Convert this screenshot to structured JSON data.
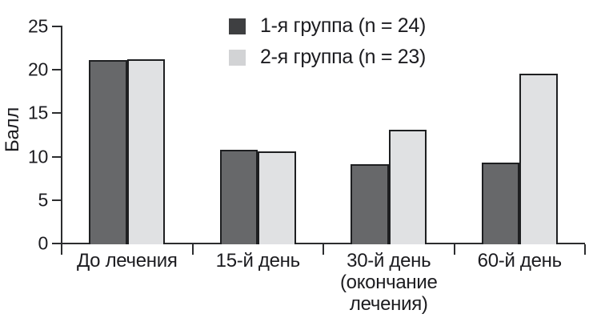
{
  "chart_data": {
    "type": "bar",
    "title": "",
    "ylabel": "Балл",
    "xlabel": "",
    "categories": [
      "До лечения",
      "15-й день",
      "30-й день\n(окончание\nлечения)",
      "60-й день"
    ],
    "series": [
      {
        "name": "1-я группа (n = 24)",
        "color": "#67686a",
        "legend_color": "#3e3f41",
        "values": [
          21.0,
          10.7,
          9.0,
          9.2
        ]
      },
      {
        "name": "2-я группа (n = 23)",
        "color": "#e0e1e3",
        "legend_color": "#d2d3d5",
        "values": [
          21.1,
          10.5,
          13.0,
          19.5
        ]
      }
    ],
    "ylim": [
      0,
      25
    ],
    "yticks": [
      0,
      5,
      10,
      15,
      20,
      25
    ],
    "grid": false,
    "legend_position": "top-center",
    "bar_border_color": "#1e1f21",
    "axis_color": "#2c2d2f",
    "text_color": "#1c1c20",
    "background_color": "#ffffff"
  }
}
